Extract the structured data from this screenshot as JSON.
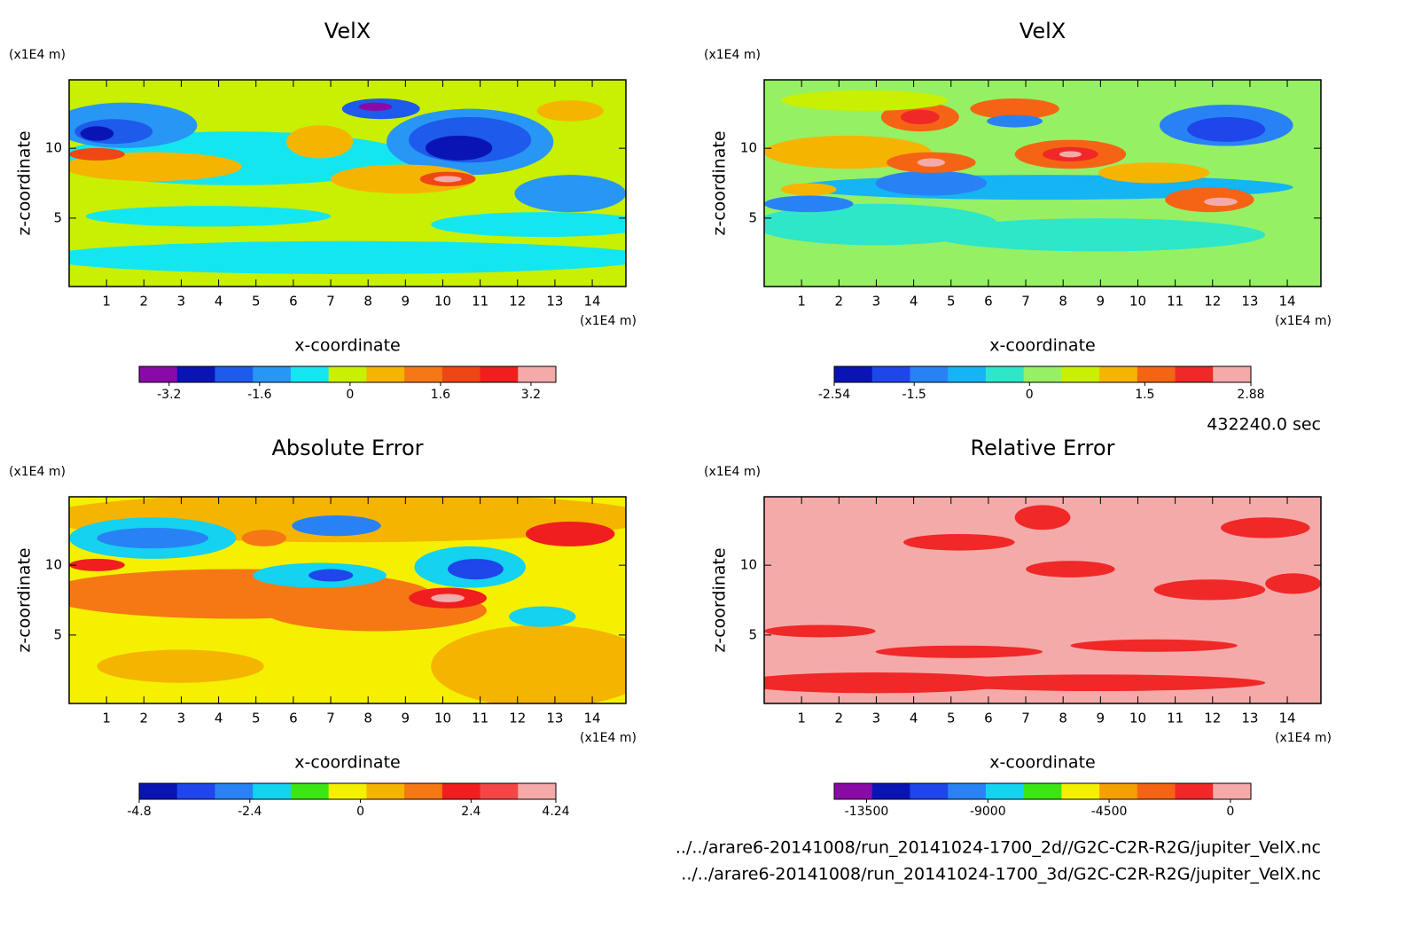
{
  "chart_data": [
    {
      "type": "contour",
      "title": "VelX",
      "xlabel": "x-coordinate",
      "ylabel": "z-coordinate",
      "xunit": "(x1E4 m)",
      "yunit": "(x1E4 m)",
      "xlim": [
        0,
        14.9
      ],
      "ylim": [
        0.1,
        14.9
      ],
      "xticks": [
        1,
        2,
        3,
        4,
        5,
        6,
        7,
        8,
        9,
        10,
        11,
        12,
        13,
        14
      ],
      "yticks": [
        5,
        10
      ],
      "colorbar": {
        "lim": [
          -3.73,
          3.64
        ],
        "ticks": [
          -3.2,
          -1.6,
          0,
          1.6,
          3.2
        ],
        "colors": [
          "#8a0aa8",
          "#0a14b4",
          "#1e5aeb",
          "#2896f5",
          "#14e6f0",
          "#c8f000",
          "#f5b400",
          "#f57814",
          "#f04614",
          "#f01e1e",
          "#f5aaaa"
        ]
      }
    },
    {
      "type": "contour",
      "title": "VelX",
      "xlabel": "x-coordinate",
      "ylabel": "z-coordinate",
      "xunit": "(x1E4 m)",
      "yunit": "(x1E4 m)",
      "xlim": [
        0,
        14.9
      ],
      "ylim": [
        0.1,
        14.9
      ],
      "xticks": [
        1,
        2,
        3,
        4,
        5,
        6,
        7,
        8,
        9,
        10,
        11,
        12,
        13,
        14
      ],
      "yticks": [
        5,
        10
      ],
      "colorbar": {
        "lim": [
          -2.54,
          2.88
        ],
        "ticks": [
          -2.54,
          -1.5,
          0,
          1.5,
          2.88
        ],
        "colors": [
          "#0a14b4",
          "#1e46eb",
          "#2882f5",
          "#14b4f5",
          "#2ee6c8",
          "#96f064",
          "#c8f000",
          "#f5b400",
          "#f56414",
          "#f02828",
          "#f5aaaa"
        ]
      }
    },
    {
      "type": "contour",
      "title": "Absolute Error",
      "xlabel": "x-coordinate",
      "ylabel": "z-coordinate",
      "xunit": "(x1E4 m)",
      "yunit": "(x1E4 m)",
      "xlim": [
        0,
        14.9
      ],
      "ylim": [
        0.1,
        14.9
      ],
      "xticks": [
        1,
        2,
        3,
        4,
        5,
        6,
        7,
        8,
        9,
        10,
        11,
        12,
        13,
        14
      ],
      "yticks": [
        5,
        10
      ],
      "colorbar": {
        "lim": [
          -4.8,
          4.24
        ],
        "ticks": [
          -4.8,
          -2.4,
          0,
          2.4,
          4.24
        ],
        "colors": [
          "#0a14b4",
          "#1e46eb",
          "#2882f5",
          "#14d2f0",
          "#3ce614",
          "#f5f000",
          "#f5b400",
          "#f57814",
          "#f01e1e",
          "#f54646",
          "#f5aaaa"
        ]
      }
    },
    {
      "type": "contour",
      "title": "Relative Error",
      "xlabel": "x-coordinate",
      "ylabel": "z-coordinate",
      "xunit": "(x1E4 m)",
      "yunit": "(x1E4 m)",
      "xlim": [
        0,
        14.9
      ],
      "ylim": [
        0.1,
        14.9
      ],
      "xticks": [
        1,
        2,
        3,
        4,
        5,
        6,
        7,
        8,
        9,
        10,
        11,
        12,
        13,
        14
      ],
      "yticks": [
        5,
        10
      ],
      "colorbar": {
        "lim": [
          -14700,
          760
        ],
        "ticks": [
          -13500,
          -9000,
          -4500,
          0
        ],
        "colors": [
          "#8a0aa8",
          "#0a14b4",
          "#1e46eb",
          "#2882f5",
          "#14d2f0",
          "#3ce614",
          "#f5f000",
          "#f5a000",
          "#f56414",
          "#f02828",
          "#f5aaaa"
        ]
      }
    }
  ],
  "footer": {
    "time": "432240.0 sec",
    "files": [
      "../../arare6-20141008/run_20141024-1700_2d//G2C-C2R-R2G/jupiter_VelX.nc",
      "../../arare6-20141008/run_20141024-1700_3d/G2C-C2R-R2G/jupiter_VelX.nc"
    ]
  }
}
